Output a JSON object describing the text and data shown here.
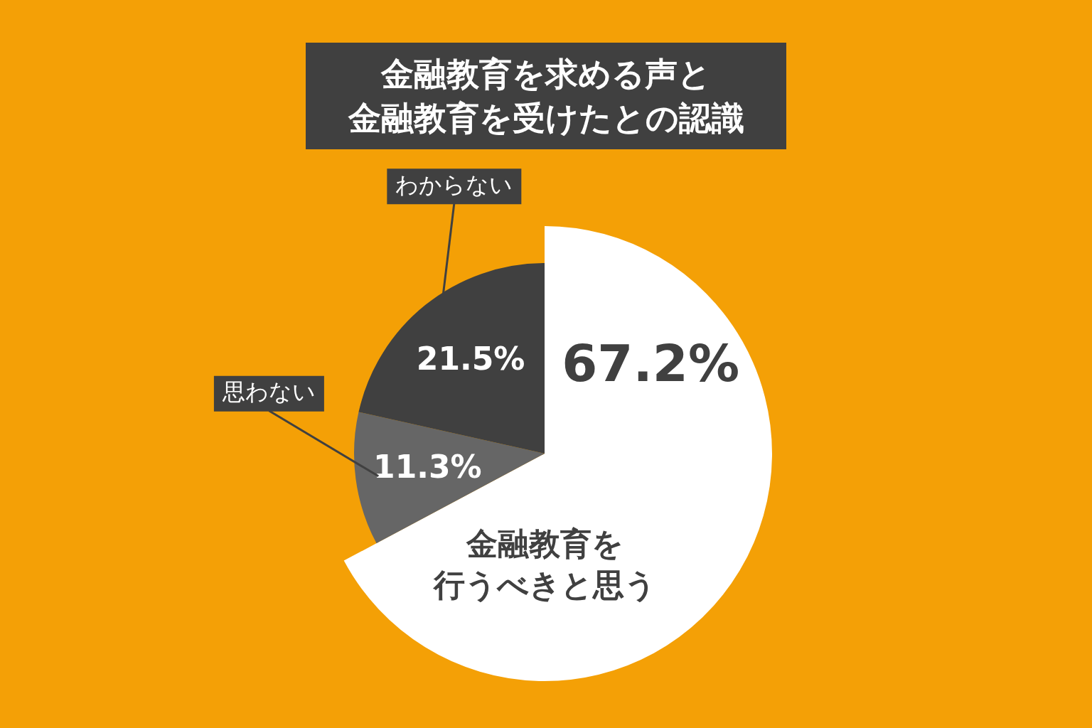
{
  "chart_data": {
    "type": "pie",
    "title": "金融教育を求める声と金融教育を受けたとの認識",
    "categories": [
      "金融教育を行うべきと思う",
      "思わない",
      "わからない"
    ],
    "values": [
      67.2,
      11.3,
      21.5
    ],
    "colors": [
      "#ffffff",
      "#666666",
      "#404040"
    ],
    "value_labels": [
      "67.2%",
      "11.3%",
      "21.5%"
    ],
    "legend": false
  }
}
